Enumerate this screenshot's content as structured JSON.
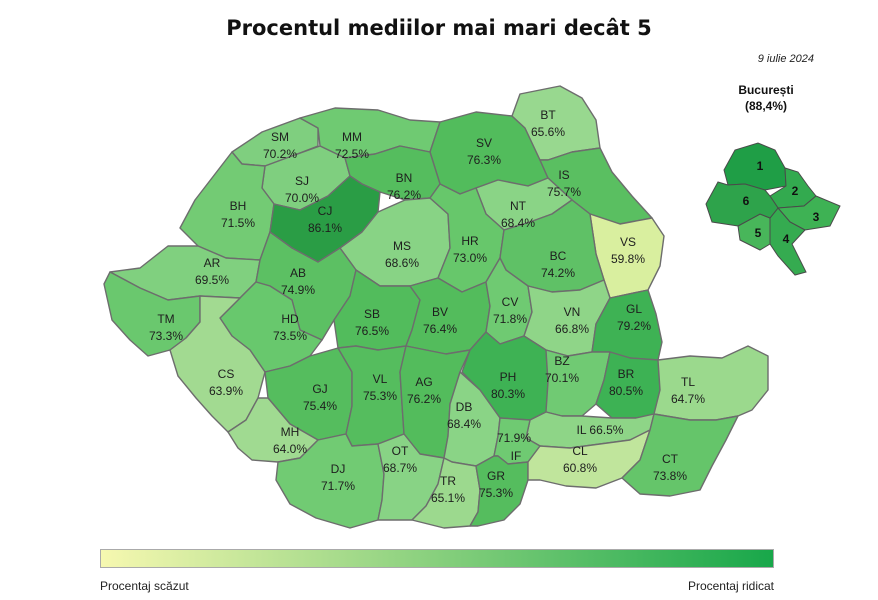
{
  "title": "Procentul mediilor mai mari decât 5",
  "date": "9 iulie 2024",
  "bucuresti": {
    "name": "București",
    "value_text": "(88,4%)",
    "sectors": [
      "1",
      "2",
      "3",
      "4",
      "5",
      "6"
    ]
  },
  "legend": {
    "low_label": "Procentaj scăzut",
    "high_label": "Procentaj ridicat",
    "color_low": "#f6f8b0",
    "color_high": "#18a74a"
  },
  "counties": [
    {
      "code": "SM",
      "value": "70.2%"
    },
    {
      "code": "MM",
      "value": "72.5%"
    },
    {
      "code": "SV",
      "value": "76.3%"
    },
    {
      "code": "BT",
      "value": "65.6%"
    },
    {
      "code": "SJ",
      "value": "70.0%"
    },
    {
      "code": "BN",
      "value": "76.2%"
    },
    {
      "code": "IS",
      "value": "75.7%"
    },
    {
      "code": "BH",
      "value": "71.5%"
    },
    {
      "code": "CJ",
      "value": "86.1%"
    },
    {
      "code": "NT",
      "value": "68.4%"
    },
    {
      "code": "VS",
      "value": "59.8%"
    },
    {
      "code": "MS",
      "value": "68.6%"
    },
    {
      "code": "HR",
      "value": "73.0%"
    },
    {
      "code": "BC",
      "value": "74.2%"
    },
    {
      "code": "AR",
      "value": "69.5%"
    },
    {
      "code": "AB",
      "value": "74.9%"
    },
    {
      "code": "TM",
      "value": "73.3%"
    },
    {
      "code": "HD",
      "value": "73.5%"
    },
    {
      "code": "SB",
      "value": "76.5%"
    },
    {
      "code": "BV",
      "value": "76.4%"
    },
    {
      "code": "CV",
      "value": "71.8%"
    },
    {
      "code": "VN",
      "value": "66.8%"
    },
    {
      "code": "GL",
      "value": "79.2%"
    },
    {
      "code": "CS",
      "value": "63.9%"
    },
    {
      "code": "GJ",
      "value": "75.4%"
    },
    {
      "code": "VL",
      "value": "75.3%"
    },
    {
      "code": "AG",
      "value": "76.2%"
    },
    {
      "code": "PH",
      "value": "80.3%"
    },
    {
      "code": "BZ",
      "value": "70.1%"
    },
    {
      "code": "BR",
      "value": "80.5%"
    },
    {
      "code": "TL",
      "value": "64.7%"
    },
    {
      "code": "MH",
      "value": "64.0%"
    },
    {
      "code": "DB",
      "value": "68.4%"
    },
    {
      "code": "IL",
      "value": "66.5%"
    },
    {
      "code": "IF",
      "value": "71.9%"
    },
    {
      "code": "DJ",
      "value": "71.7%"
    },
    {
      "code": "OT",
      "value": "68.7%"
    },
    {
      "code": "TR",
      "value": "65.1%"
    },
    {
      "code": "GR",
      "value": "75.3%"
    },
    {
      "code": "CL",
      "value": "60.8%"
    },
    {
      "code": "CT",
      "value": "73.8%"
    }
  ]
}
